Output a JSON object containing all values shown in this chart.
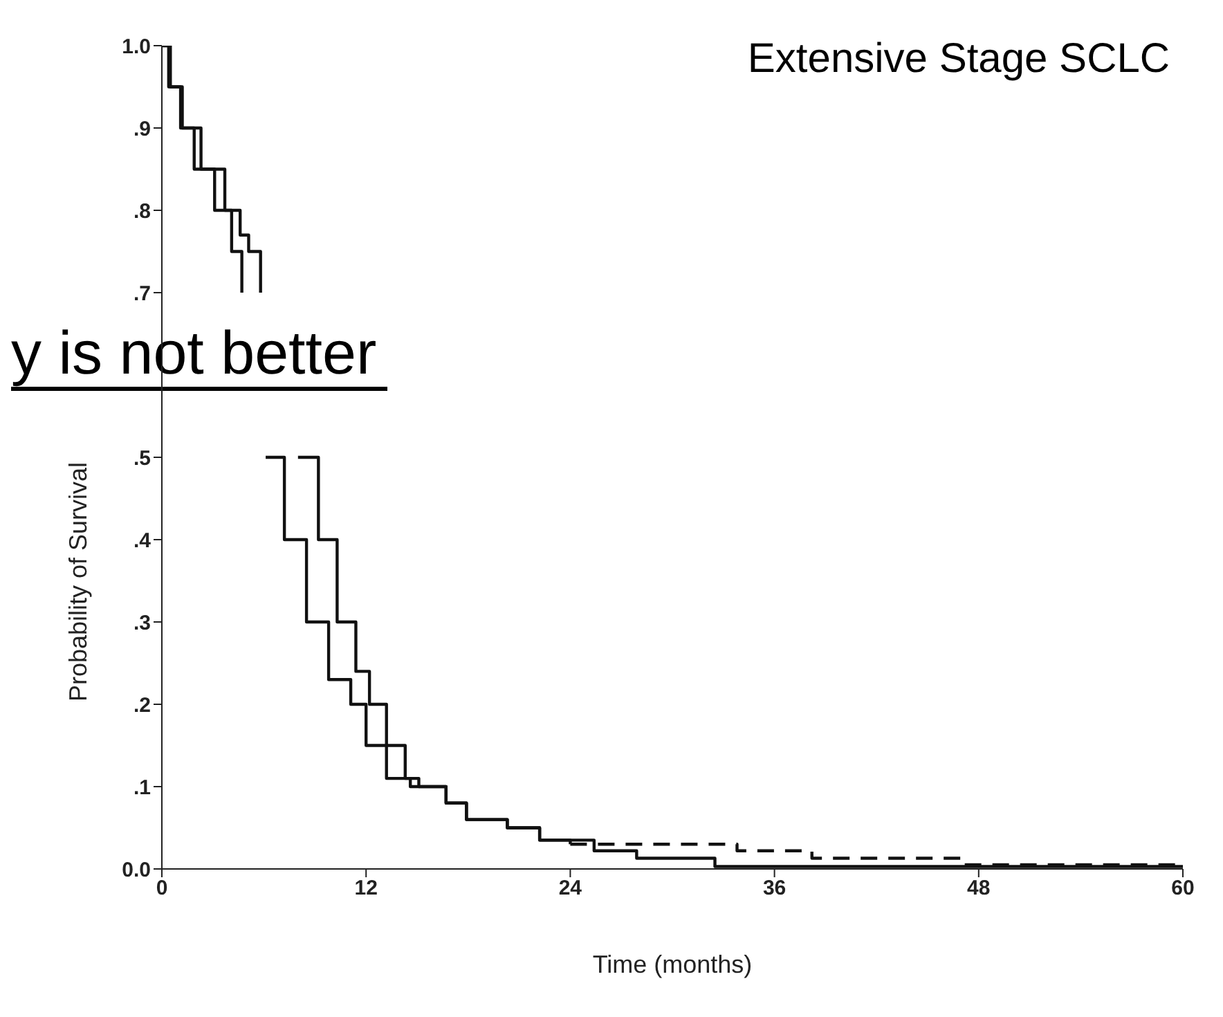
{
  "chart_data": {
    "type": "step",
    "title": "Extensive Stage SCLC",
    "xlabel": "Time (months)",
    "ylabel": "Probability of Survival",
    "annotations": [
      "y is not better"
    ],
    "xlim": [
      0,
      60
    ],
    "xticks": [
      0,
      12,
      24,
      36,
      48,
      60
    ],
    "ylim": [
      0,
      1
    ],
    "yticks": [
      {
        "value": 0,
        "label": "0.0"
      },
      {
        "value": 0.1,
        "label": ".1"
      },
      {
        "value": 0.2,
        "label": ".2"
      },
      {
        "value": 0.3,
        "label": ".3"
      },
      {
        "value": 0.4,
        "label": ".4"
      },
      {
        "value": 0.5,
        "label": ".5"
      },
      {
        "value": 0.7,
        "label": ".7"
      },
      {
        "value": 0.8,
        "label": ".8"
      },
      {
        "value": 0.9,
        "label": ".9"
      },
      {
        "value": 1,
        "label": "1.0"
      }
    ],
    "grid": false,
    "legend": false,
    "marker": "none",
    "series": [
      {
        "color": "#111111",
        "line_style": "solid",
        "x": [
          0,
          0.4,
          1.1,
          1.9,
          3.1,
          4.1,
          4.7,
          5.4,
          6.1,
          7.2,
          8.5,
          9.8,
          11.1,
          12.0,
          13.2,
          14.6,
          16.7,
          17.9,
          20.3,
          22.2,
          25.4,
          27.9,
          32.5,
          60
        ],
        "values": [
          1,
          0.95,
          0.9,
          0.85,
          0.8,
          0.75,
          0.7,
          null,
          0.5,
          0.4,
          0.3,
          0.23,
          0.2,
          0.15,
          0.11,
          0.1,
          0.08,
          0.06,
          0.05,
          0.035,
          0.022,
          0.013,
          0.003,
          0.003
        ]
      },
      {
        "color": "#111111",
        "line_style": "solid",
        "x": [
          0,
          0.5,
          1.2,
          2.3,
          3.7,
          4.6,
          5.1,
          5.8,
          6.9,
          8.0,
          9.2,
          10.3,
          11.4,
          12.2,
          13.2,
          14.3,
          15.1,
          16.7,
          17.9,
          20.3,
          22.2,
          24
        ],
        "values": [
          1,
          0.95,
          0.9,
          0.85,
          0.8,
          0.77,
          0.75,
          0.7,
          null,
          0.5,
          0.4,
          0.3,
          0.24,
          0.2,
          0.15,
          0.11,
          0.1,
          0.08,
          0.06,
          0.05,
          0.035,
          0.03
        ]
      },
      {
        "color": "#111111",
        "line_style": "dashed",
        "x": [
          24,
          33.8,
          38.2,
          47.1,
          60
        ],
        "values": [
          0.03,
          0.022,
          0.013,
          0.005,
          0.005
        ]
      }
    ]
  }
}
